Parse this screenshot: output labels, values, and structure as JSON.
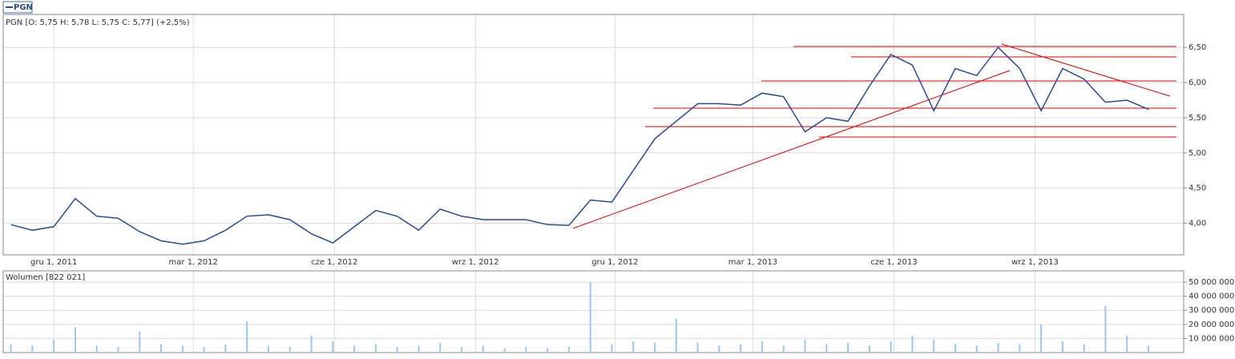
{
  "chart_data": [
    {
      "type": "line",
      "title": "PGN [O: 5,75  H: 5,78  L: 5,75  C: 5,77] (+2,5%)",
      "x": [
        "2011-11-03",
        "2011-11-17",
        "2011-12-01",
        "2011-12-15",
        "2011-12-29",
        "2012-01-12",
        "2012-01-26",
        "2012-02-09",
        "2012-02-23",
        "2012-03-08",
        "2012-03-22",
        "2012-04-05",
        "2012-04-19",
        "2012-05-03",
        "2012-05-17",
        "2012-05-31",
        "2012-06-14",
        "2012-06-28",
        "2012-07-12",
        "2012-07-26",
        "2012-08-09",
        "2012-08-23",
        "2012-09-06",
        "2012-09-20",
        "2012-10-04",
        "2012-10-18",
        "2012-11-01",
        "2012-11-15",
        "2012-11-29",
        "2012-12-13",
        "2012-12-27",
        "2013-01-10",
        "2013-01-24",
        "2013-02-07",
        "2013-02-21",
        "2013-03-07",
        "2013-03-21",
        "2013-04-04",
        "2013-04-18",
        "2013-05-02",
        "2013-05-16",
        "2013-05-30",
        "2013-06-13",
        "2013-06-27",
        "2013-07-11",
        "2013-07-25",
        "2013-08-08",
        "2013-08-22",
        "2013-09-05",
        "2013-09-19",
        "2013-10-03",
        "2013-10-17",
        "2013-10-31",
        "2013-11-14"
      ],
      "series": [
        {
          "name": "PGN",
          "color": "#2b4a8f",
          "values": [
            3.98,
            3.9,
            3.95,
            4.35,
            4.1,
            4.07,
            3.88,
            3.75,
            3.7,
            3.75,
            3.9,
            4.1,
            4.12,
            4.05,
            3.85,
            3.72,
            3.95,
            4.18,
            4.1,
            3.9,
            4.2,
            4.1,
            4.05,
            4.05,
            4.05,
            3.98,
            3.97,
            4.33,
            4.3,
            4.75,
            5.2,
            5.45,
            5.7,
            5.7,
            5.68,
            5.85,
            5.8,
            5.3,
            5.5,
            5.45,
            5.95,
            6.4,
            6.25,
            5.6,
            6.2,
            6.1,
            6.5,
            6.2,
            5.6,
            6.2,
            6.05,
            5.72,
            5.75,
            5.62
          ]
        }
      ],
      "xlim": [
        "2011-10-29",
        "2013-12-07"
      ],
      "xticks": [
        {
          "value": "2011-12-01",
          "label": "gru 1, 2011"
        },
        {
          "value": "2012-03-01",
          "label": "mar 1, 2012"
        },
        {
          "value": "2012-06-01",
          "label": "cze 1, 2012"
        },
        {
          "value": "2012-09-01",
          "label": "wrz 1, 2012"
        },
        {
          "value": "2012-12-01",
          "label": "gru 1, 2012"
        },
        {
          "value": "2013-03-01",
          "label": "mar 1, 2013"
        },
        {
          "value": "2013-06-01",
          "label": "cze 1, 2013"
        },
        {
          "value": "2013-09-01",
          "label": "wrz 1, 2013"
        }
      ],
      "ylim": [
        3.55,
        6.97
      ],
      "yticks": [
        {
          "value": 4,
          "label": "4,00"
        },
        {
          "value": 4.5,
          "label": "4,50"
        },
        {
          "value": 5,
          "label": "5,00"
        },
        {
          "value": 5.5,
          "label": "5,50"
        },
        {
          "value": 6,
          "label": "6,00"
        },
        {
          "value": 6.5,
          "label": "6,50"
        }
      ],
      "grid": true
    },
    {
      "type": "bar",
      "title": "Wolumen [822 021]",
      "x": [
        "2011-11-03",
        "2011-11-17",
        "2011-12-01",
        "2011-12-15",
        "2011-12-29",
        "2012-01-12",
        "2012-01-26",
        "2012-02-09",
        "2012-02-23",
        "2012-03-08",
        "2012-03-22",
        "2012-04-05",
        "2012-04-19",
        "2012-05-03",
        "2012-05-17",
        "2012-05-31",
        "2012-06-14",
        "2012-06-28",
        "2012-07-12",
        "2012-07-26",
        "2012-08-09",
        "2012-08-23",
        "2012-09-06",
        "2012-09-20",
        "2012-10-04",
        "2012-10-18",
        "2012-11-01",
        "2012-11-15",
        "2012-11-29",
        "2012-12-13",
        "2012-12-27",
        "2013-01-10",
        "2013-01-24",
        "2013-02-07",
        "2013-02-21",
        "2013-03-07",
        "2013-03-21",
        "2013-04-04",
        "2013-04-18",
        "2013-05-02",
        "2013-05-16",
        "2013-05-30",
        "2013-06-13",
        "2013-06-27",
        "2013-07-11",
        "2013-07-25",
        "2013-08-08",
        "2013-08-22",
        "2013-09-05",
        "2013-09-19",
        "2013-10-03",
        "2013-10-17",
        "2013-10-31",
        "2013-11-14"
      ],
      "series": [
        {
          "name": "Wolumen",
          "color": "#9fc5ea",
          "values": [
            6000000,
            5000000,
            9000000,
            18000000,
            5000000,
            4000000,
            15000000,
            6000000,
            5000000,
            4000000,
            6000000,
            22000000,
            5000000,
            4000000,
            12000000,
            8000000,
            5000000,
            6000000,
            4000000,
            5000000,
            7000000,
            4000000,
            5000000,
            3000000,
            4000000,
            3000000,
            4000000,
            50000000,
            6000000,
            8000000,
            7000000,
            24000000,
            7000000,
            5000000,
            6000000,
            8000000,
            5000000,
            9000000,
            6000000,
            7000000,
            5000000,
            8000000,
            12000000,
            9000000,
            6000000,
            5000000,
            7000000,
            6000000,
            20000000,
            8000000,
            6000000,
            33000000,
            12000000,
            5000000
          ]
        }
      ],
      "xlim": [
        "2011-10-29",
        "2013-12-07"
      ],
      "ylim": [
        0,
        58000000
      ],
      "yticks": [
        {
          "value": 10000000,
          "label": "10 000 000"
        },
        {
          "value": 20000000,
          "label": "20 000 000"
        },
        {
          "value": 30000000,
          "label": "30 000 000"
        },
        {
          "value": 40000000,
          "label": "40 000 000"
        },
        {
          "value": 50000000,
          "label": "50 000 000"
        }
      ],
      "grid": true
    }
  ]
}
